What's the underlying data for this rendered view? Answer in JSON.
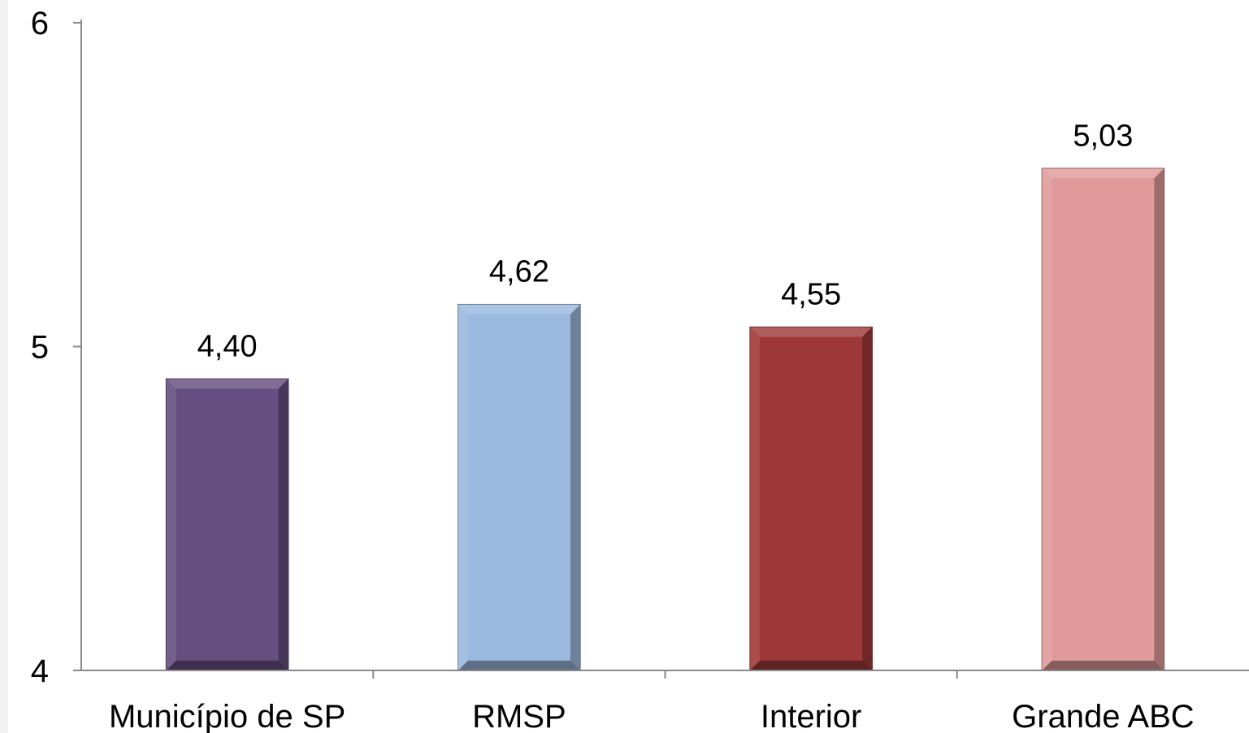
{
  "chart_data": {
    "type": "bar",
    "categories": [
      "Município de SP",
      "RMSP",
      "Interior",
      "Grande ABC"
    ],
    "values": [
      4.4,
      4.62,
      4.55,
      5.03
    ],
    "data_labels": [
      "4,40",
      "4,62",
      "4,55",
      "5,03"
    ],
    "axis_plotted_values": [
      4.9,
      5.13,
      5.06,
      5.55
    ],
    "yticks": [
      {
        "value": 4,
        "label": "4"
      },
      {
        "value": 5,
        "label": "5"
      },
      {
        "value": 6,
        "label": "6"
      }
    ],
    "ylim": [
      4,
      6
    ],
    "title": "",
    "xlabel": "",
    "ylabel": "",
    "grid": false,
    "colors": [
      "#654e80",
      "#9bb8de",
      "#9e3838",
      "#e09a9a"
    ],
    "bar_style": "bevel"
  }
}
